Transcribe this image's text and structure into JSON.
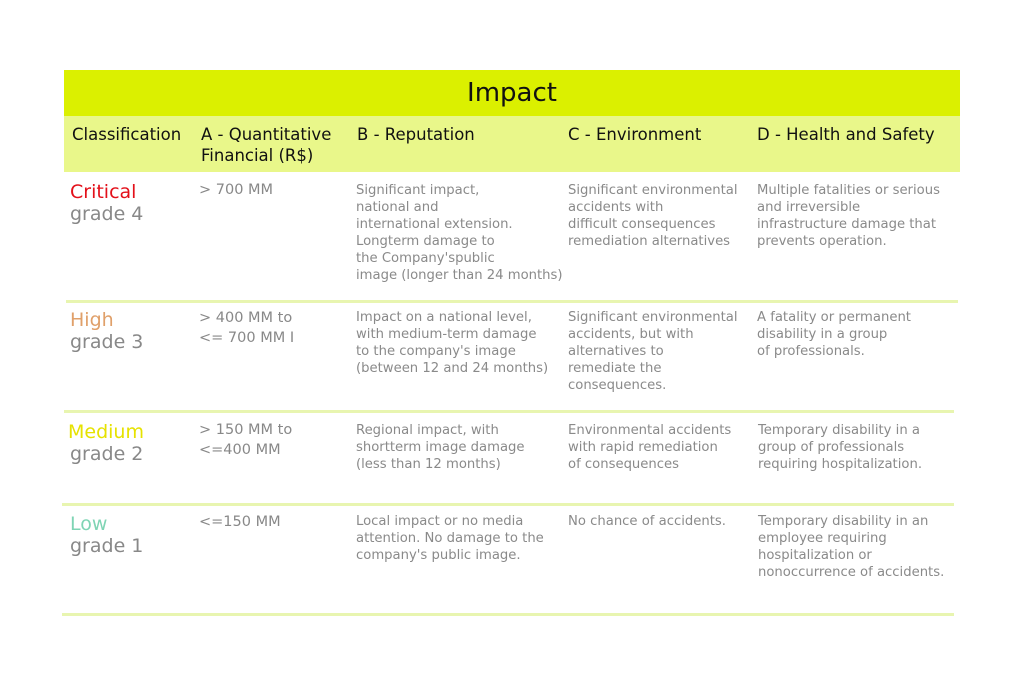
{
  "title": "Impact",
  "headers": {
    "classification": "Classification",
    "financial": "A - Quantitative\nFinancial (R$)",
    "reputation": "B - Reputation",
    "environment": "C - Environment",
    "health": "D - Health and Safety"
  },
  "colors": {
    "title_bg": "#dbf000",
    "header_bg": "#e9f78a",
    "critical": "#e3101a",
    "high": "#e0a06a",
    "medium": "#e6e200",
    "low": "#7fd4b4"
  },
  "rows": [
    {
      "level": "Critical",
      "grade": "grade 4",
      "financial": "> 700 MM",
      "reputation": "Significant impact,\nnational and\ninternational extension.\nLongterm damage to\nthe Company'spublic\nimage (longer than 24 months)",
      "environment": "Significant environmental\naccidents with\ndifficult consequences\nremediation alternatives",
      "health": "Multiple fatalities or serious\nand irreversible\ninfrastructure damage that\nprevents operation."
    },
    {
      "level": "High",
      "grade": "grade 3",
      "financial": "> 400 MM to\n<= 700 MM I",
      "reputation": "Impact on a national level,\nwith medium-term damage\nto the company's image\n(between 12 and 24 months)",
      "environment": "Significant environmental\naccidents, but with\nalternatives to\nremediate the\nconsequences.",
      "health": "A fatality or permanent\ndisability in a group\nof professionals."
    },
    {
      "level": "Medium",
      "grade": "grade 2",
      "financial": "> 150 MM to\n<=400 MM",
      "reputation": "Regional impact, with\nshortterm image damage\n(less than 12 months)",
      "environment": "Environmental accidents\nwith rapid remediation\nof consequences",
      "health": "Temporary disability in a\ngroup of professionals\nrequiring hospitalization."
    },
    {
      "level": "Low",
      "grade": "grade 1",
      "financial": "<=150 MM",
      "reputation": "Local impact or no media\nattention. No damage to the\ncompany's public image.",
      "environment": "No chance of accidents.",
      "health": "Temporary disability in an\nemployee requiring\nhospitalization or\nnonoccurrence of accidents."
    }
  ]
}
